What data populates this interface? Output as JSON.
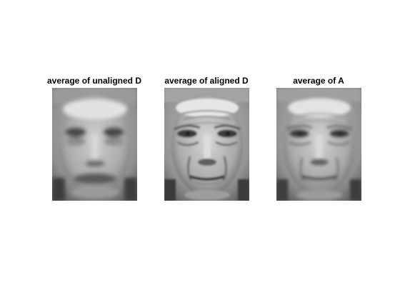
{
  "figure": {
    "background_color": "#ffffff",
    "panels": [
      {
        "id": "unaligned",
        "title": "average of unaligned D",
        "blur": "high"
      },
      {
        "id": "aligned",
        "title": "average of aligned D",
        "blur": "low"
      },
      {
        "id": "a",
        "title": "average of A",
        "blur": "medium"
      }
    ]
  }
}
